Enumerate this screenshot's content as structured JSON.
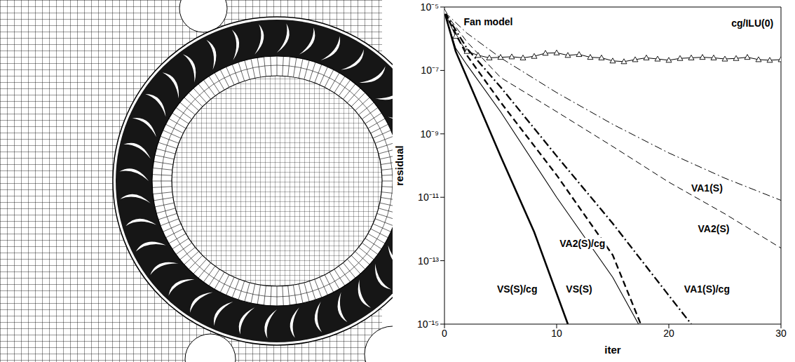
{
  "chart_data": {
    "type": "line",
    "title": "Fan model",
    "x_label": "iter",
    "y_label": "residual",
    "log": "y",
    "grid": false,
    "xlim": [
      0,
      30
    ],
    "xticks": [
      0,
      10,
      20,
      30
    ],
    "ylim": [
      1e-15,
      1e-05
    ],
    "yticks": [
      {
        "value": 1e-15,
        "label": "10⁻¹⁵"
      },
      {
        "value": 1e-13,
        "label": "10⁻¹³"
      },
      {
        "value": 1e-11,
        "label": "10⁻¹¹"
      },
      {
        "value": 1e-09,
        "label": "10⁻⁹"
      },
      {
        "value": 1e-07,
        "label": "10⁻⁷"
      },
      {
        "value": 1e-05,
        "label": "10⁻⁵"
      }
    ],
    "series": [
      {
        "name": "cg/ILU(0)",
        "color": "#000000",
        "line_style": "solid",
        "marker": "triangle",
        "x": [
          0,
          1,
          2,
          3,
          4,
          5,
          6,
          7,
          8,
          9,
          10,
          11,
          12,
          13,
          14,
          15,
          16,
          17,
          18,
          19,
          20,
          21,
          22,
          23,
          24,
          25,
          26,
          27,
          28,
          29,
          30
        ],
        "values": [
          7e-06,
          1.2e-06,
          4e-07,
          3e-07,
          2.5e-07,
          2.6e-07,
          2.7e-07,
          2.5e-07,
          2.8e-07,
          3.5e-07,
          3.6e-07,
          3e-07,
          3.2e-07,
          2.6e-07,
          2.5e-07,
          2e-07,
          1.9e-07,
          2.2e-07,
          2.5e-07,
          2.3e-07,
          2.1e-07,
          2.4e-07,
          2.5e-07,
          2.6e-07,
          2.5e-07,
          2.3e-07,
          2.4e-07,
          2.6e-07,
          2.2e-07,
          2.1e-07,
          2.2e-07
        ]
      },
      {
        "name": "VA1(S)",
        "color": "#000000",
        "line_style": "dashdot",
        "marker": "none",
        "x": [
          0,
          2,
          5,
          10,
          15,
          20,
          25,
          30
        ],
        "values": [
          7e-06,
          1.5e-06,
          2.5e-07,
          2e-08,
          2e-09,
          2.5e-10,
          4e-11,
          8e-12
        ]
      },
      {
        "name": "VA2(S)",
        "color": "#000000",
        "line_style": "dashed",
        "marker": "none",
        "x": [
          0,
          2,
          5,
          10,
          15,
          20,
          25,
          30
        ],
        "values": [
          7e-06,
          8e-07,
          6e-08,
          5e-09,
          4e-10,
          3e-11,
          3e-12,
          2.5e-13
        ]
      },
      {
        "name": "VA2(S)/cg",
        "color": "#000000",
        "line_style": "dashed",
        "marker": "none",
        "x": [
          0,
          2,
          5,
          10,
          15,
          17.5
        ],
        "values": [
          7e-06,
          3e-07,
          1e-08,
          5e-11,
          1.5e-13,
          1e-15
        ]
      },
      {
        "name": "VS(S)",
        "color": "#000000",
        "line_style": "solid",
        "marker": "none",
        "x": [
          0,
          1,
          2,
          5,
          10,
          15,
          17.3
        ],
        "values": [
          7e-06,
          5e-07,
          1.5e-07,
          5e-09,
          1e-11,
          3e-14,
          1e-15
        ]
      },
      {
        "name": "VS(S)/cg",
        "color": "#000000",
        "line_style": "solid",
        "marker": "none",
        "x": [
          0,
          1,
          2,
          5,
          8,
          11
        ],
        "values": [
          7e-06,
          4e-07,
          6e-08,
          2e-10,
          8e-13,
          1e-15
        ]
      },
      {
        "name": "VA1(S)/cg",
        "color": "#000000",
        "line_style": "dashdot",
        "marker": "none",
        "x": [
          0,
          2,
          5,
          10,
          15,
          20,
          22
        ],
        "values": [
          7e-06,
          5e-07,
          3e-08,
          2e-10,
          1.5e-12,
          8e-15,
          1e-15
        ]
      }
    ]
  }
}
